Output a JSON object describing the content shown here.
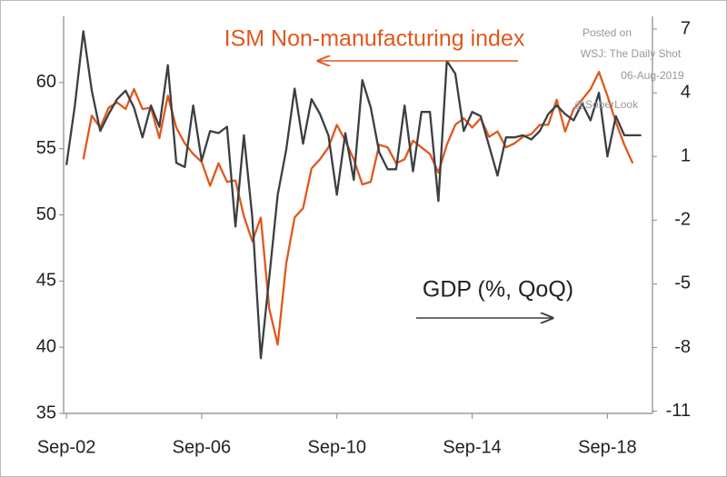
{
  "chart_data": {
    "type": "line",
    "title": "ISM Non-manufacturing index",
    "annotations": [
      "GDP (%, QoQ)",
      "Posted on",
      "WSJ: The Daily Shot",
      "06-Aug-2019",
      "@SoberLook"
    ],
    "xlim": [
      "2002-08",
      "2020-01"
    ],
    "xticks": [
      {
        "value": "2002-09",
        "label": "Sep-02"
      },
      {
        "value": "2006-09",
        "label": "Sep-06"
      },
      {
        "value": "2010-09",
        "label": "Sep-10"
      },
      {
        "value": "2014-09",
        "label": "Sep-14"
      },
      {
        "value": "2018-09",
        "label": "Sep-18"
      }
    ],
    "ylim": [
      35,
      65
    ],
    "yticks": [
      35,
      40,
      45,
      50,
      55,
      60
    ],
    "y2lim": [
      -11.1,
      7.6
    ],
    "y2ticks": [
      -11,
      -8,
      -5,
      -2,
      1,
      4,
      7
    ],
    "series": [
      {
        "name": "ISM Non-manufacturing index",
        "color": "#e0581c",
        "axis": "y",
        "x": [
          "2003-03",
          "2003-06",
          "2003-09",
          "2003-12",
          "2004-03",
          "2004-06",
          "2004-09",
          "2004-12",
          "2005-03",
          "2005-06",
          "2005-09",
          "2005-12",
          "2006-03",
          "2006-06",
          "2006-09",
          "2006-12",
          "2007-03",
          "2007-06",
          "2007-09",
          "2007-12",
          "2008-03",
          "2008-06",
          "2008-09",
          "2008-12",
          "2009-03",
          "2009-06",
          "2009-09",
          "2009-12",
          "2010-03",
          "2010-06",
          "2010-09",
          "2010-12",
          "2011-03",
          "2011-06",
          "2011-09",
          "2011-12",
          "2012-03",
          "2012-06",
          "2012-09",
          "2012-12",
          "2013-03",
          "2013-06",
          "2013-09",
          "2013-12",
          "2014-03",
          "2014-06",
          "2014-09",
          "2014-12",
          "2015-03",
          "2015-06",
          "2015-09",
          "2015-12",
          "2016-03",
          "2016-06",
          "2016-09",
          "2016-12",
          "2017-03",
          "2017-06",
          "2017-09",
          "2017-12",
          "2018-03",
          "2018-06",
          "2018-09",
          "2018-12",
          "2019-03",
          "2019-06"
        ],
        "values": [
          54.2,
          57.5,
          56.6,
          58.1,
          58.5,
          58.0,
          59.5,
          58.0,
          58.1,
          55.8,
          59.0,
          56.6,
          55.4,
          54.6,
          54.0,
          52.2,
          53.9,
          52.5,
          52.6,
          49.9,
          48.0,
          49.8,
          42.9,
          40.2,
          46.3,
          49.8,
          50.5,
          53.5,
          54.2,
          55.1,
          56.8,
          55.6,
          54.2,
          52.3,
          52.5,
          55.3,
          55.1,
          53.9,
          54.2,
          55.6,
          55.1,
          54.6,
          53.2,
          55.3,
          56.8,
          57.3,
          56.6,
          57.3,
          55.9,
          56.3,
          55.1,
          55.4,
          55.9,
          56.1,
          56.8,
          56.8,
          58.7,
          56.3,
          58.0,
          58.7,
          59.5,
          60.8,
          59.0,
          57.0,
          55.3,
          53.9
        ]
      },
      {
        "name": "GDP (%, QoQ)",
        "color": "#3a3f44",
        "axis": "y2",
        "x": [
          "2002-09",
          "2002-12",
          "2003-03",
          "2003-06",
          "2003-09",
          "2003-12",
          "2004-03",
          "2004-06",
          "2004-09",
          "2004-12",
          "2005-03",
          "2005-06",
          "2005-09",
          "2005-12",
          "2006-03",
          "2006-06",
          "2006-09",
          "2006-12",
          "2007-03",
          "2007-06",
          "2007-09",
          "2007-12",
          "2008-03",
          "2008-06",
          "2008-09",
          "2008-12",
          "2009-03",
          "2009-06",
          "2009-09",
          "2009-12",
          "2010-03",
          "2010-06",
          "2010-09",
          "2010-12",
          "2011-03",
          "2011-06",
          "2011-09",
          "2011-12",
          "2012-03",
          "2012-06",
          "2012-09",
          "2012-12",
          "2013-03",
          "2013-06",
          "2013-09",
          "2013-12",
          "2014-03",
          "2014-06",
          "2014-09",
          "2014-12",
          "2015-03",
          "2015-06",
          "2015-09",
          "2015-12",
          "2016-03",
          "2016-06",
          "2016-09",
          "2016-12",
          "2017-03",
          "2017-06",
          "2017-09",
          "2017-12",
          "2018-03",
          "2018-06",
          "2018-09",
          "2018-12",
          "2019-03",
          "2019-06",
          "2019-09"
        ],
        "values": [
          0.6,
          3.4,
          6.9,
          4.1,
          2.2,
          3.0,
          3.7,
          4.1,
          3.3,
          1.9,
          3.4,
          2.4,
          5.3,
          0.7,
          0.5,
          3.4,
          0.8,
          2.2,
          2.1,
          2.4,
          -2.3,
          2.0,
          -1.9,
          -8.5,
          -4.7,
          -0.8,
          1.3,
          4.2,
          1.6,
          3.7,
          3.0,
          2.0,
          -0.8,
          2.1,
          -0.1,
          4.6,
          3.3,
          1.2,
          0.4,
          0.4,
          3.4,
          0.3,
          3.1,
          3.1,
          -1.1,
          5.5,
          4.9,
          2.2,
          3.1,
          2.9,
          1.5,
          0.1,
          1.9,
          1.9,
          2.0,
          1.8,
          2.2,
          3.0,
          3.4,
          3.0,
          2.7,
          3.5,
          2.7,
          4.0,
          1.0,
          2.9,
          2.0,
          2.0,
          2.0
        ]
      }
    ]
  }
}
